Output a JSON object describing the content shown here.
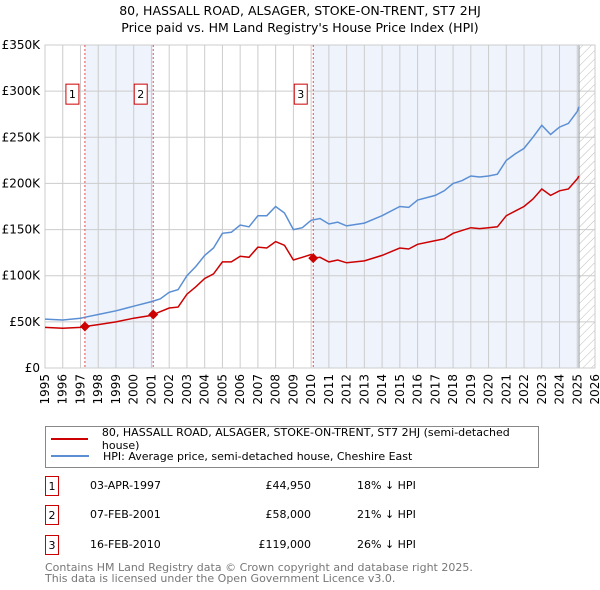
{
  "title_line1": "80, HASSALL ROAD, ALSAGER, STOKE-ON-TRENT, ST7 2HJ",
  "title_line2": "Price paid vs. HM Land Registry's House Price Index (HPI)",
  "colors": {
    "price": "#cc0000",
    "hpi": "#5b8fd4",
    "shade": "#eef3fc",
    "grid": "#cccccc"
  },
  "chart_data": {
    "type": "line",
    "xlim": [
      1995,
      2026
    ],
    "ylim": [
      0,
      350000
    ],
    "yticks": [
      0,
      50000,
      100000,
      150000,
      200000,
      250000,
      300000,
      350000
    ],
    "ytick_labels": [
      "£0",
      "£50K",
      "£100K",
      "£150K",
      "£200K",
      "£250K",
      "£300K",
      "£350K"
    ],
    "xticks": [
      1995,
      1996,
      1997,
      1998,
      1999,
      2000,
      2001,
      2002,
      2003,
      2004,
      2005,
      2006,
      2007,
      2008,
      2009,
      2010,
      2011,
      2012,
      2013,
      2014,
      2015,
      2016,
      2017,
      2018,
      2019,
      2020,
      2021,
      2022,
      2023,
      2024,
      2025,
      2026
    ],
    "grid": true,
    "data_end": 2025.1,
    "series": [
      {
        "name": "80, HASSALL ROAD, ALSAGER, STOKE-ON-TRENT, ST7 2HJ (semi-detached house)",
        "color": "#cc0000",
        "x": [
          1995,
          1996,
          1997,
          1997.25,
          1998,
          1999,
          2000,
          2001,
          2001.1,
          2002,
          2002.5,
          2003,
          2003.5,
          2004,
          2004.5,
          2005,
          2005.5,
          2006,
          2006.5,
          2007,
          2007.5,
          2008,
          2008.5,
          2009,
          2009.5,
          2010,
          2010.12,
          2010.5,
          2011,
          2011.5,
          2012,
          2013,
          2014,
          2015,
          2015.5,
          2016,
          2017,
          2017.5,
          2018,
          2019,
          2019.5,
          2020,
          2020.5,
          2021,
          2021.5,
          2022,
          2022.5,
          2023,
          2023.5,
          2024,
          2024.5,
          2025,
          2025.1
        ],
        "y": [
          44000,
          43000,
          44000,
          44950,
          47000,
          50000,
          54000,
          57000,
          58000,
          65000,
          66000,
          80000,
          88000,
          97000,
          102000,
          115000,
          115000,
          121000,
          120000,
          131000,
          130000,
          137000,
          133000,
          117000,
          120000,
          123000,
          119000,
          120000,
          115000,
          117000,
          114000,
          116000,
          122000,
          130000,
          129000,
          134000,
          138000,
          140000,
          146000,
          152000,
          151000,
          152000,
          153000,
          165000,
          170000,
          175000,
          183000,
          194000,
          187000,
          192000,
          194000,
          205000,
          208000
        ]
      },
      {
        "name": "HPI: Average price, semi-detached house, Cheshire East",
        "color": "#5b8fd4",
        "x": [
          1995,
          1996,
          1997,
          1997.5,
          1998,
          1999,
          2000,
          2001,
          2001.5,
          2002,
          2002.5,
          2003,
          2003.5,
          2004,
          2004.5,
          2005,
          2005.5,
          2006,
          2006.5,
          2007,
          2007.5,
          2008,
          2008.5,
          2009,
          2009.5,
          2010,
          2010.5,
          2011,
          2011.5,
          2012,
          2013,
          2014,
          2015,
          2015.5,
          2016,
          2017,
          2017.5,
          2018,
          2018.5,
          2019,
          2019.5,
          2020,
          2020.5,
          2021,
          2021.5,
          2022,
          2022.5,
          2023,
          2023.5,
          2024,
          2024.5,
          2025,
          2025.1
        ],
        "y": [
          53000,
          52000,
          54000,
          56000,
          58000,
          62000,
          67000,
          72000,
          75000,
          82000,
          85000,
          100000,
          110000,
          122000,
          130000,
          146000,
          147000,
          155000,
          153000,
          165000,
          165000,
          175000,
          168000,
          150000,
          152000,
          160000,
          162000,
          156000,
          158000,
          154000,
          157000,
          165000,
          175000,
          174000,
          182000,
          187000,
          192000,
          200000,
          203000,
          208000,
          207000,
          208000,
          210000,
          225000,
          232000,
          238000,
          250000,
          263000,
          253000,
          261000,
          265000,
          278000,
          283000
        ]
      }
    ],
    "sales": [
      {
        "id": "1",
        "x": 1997.25,
        "y": 44950
      },
      {
        "id": "2",
        "x": 2001.1,
        "y": 58000
      },
      {
        "id": "3",
        "x": 2010.12,
        "y": 119000
      }
    ]
  },
  "legend": [
    {
      "label": "80, HASSALL ROAD, ALSAGER, STOKE-ON-TRENT, ST7 2HJ (semi-detached house)"
    },
    {
      "label": "HPI: Average price, semi-detached house, Cheshire East"
    }
  ],
  "sales_table": [
    {
      "num": "1",
      "date": "03-APR-1997",
      "price": "£44,950",
      "hpi": "18% ↓ HPI"
    },
    {
      "num": "2",
      "date": "07-FEB-2001",
      "price": "£58,000",
      "hpi": "21% ↓ HPI"
    },
    {
      "num": "3",
      "date": "16-FEB-2010",
      "price": "£119,000",
      "hpi": "26% ↓ HPI"
    }
  ],
  "footer_line1": "Contains HM Land Registry data © Crown copyright and database right 2025.",
  "footer_line2": "This data is licensed under the Open Government Licence v3.0."
}
